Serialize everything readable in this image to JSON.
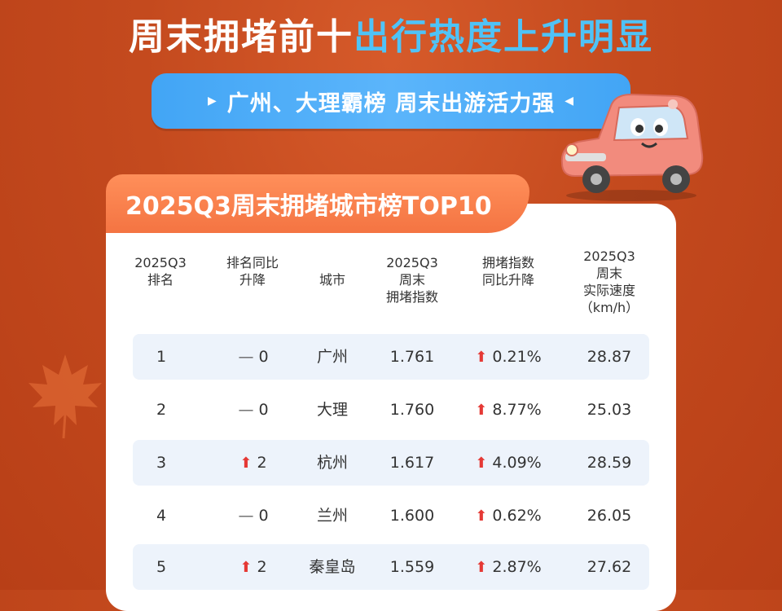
{
  "header": {
    "title_part1": "周末拥堵前十",
    "title_part2": "出行热度上升明显",
    "subtitle": "广州、大理霸榜 周末出游活力强"
  },
  "chart_data": {
    "type": "table",
    "title": "2025Q3周末拥堵城市榜TOP10",
    "columns": [
      [
        "2025Q3",
        "排名"
      ],
      [
        "排名同比",
        "升降"
      ],
      [
        "城市"
      ],
      [
        "2025Q3",
        "周末",
        "拥堵指数"
      ],
      [
        "拥堵指数",
        "同比升降"
      ],
      [
        "2025Q3",
        "周末",
        "实际速度",
        "（km/h）"
      ]
    ],
    "rows": [
      {
        "rank": "1",
        "rank_change": "0",
        "rank_dir": "flat",
        "city": "广州",
        "index": "1.761",
        "index_change": "0.21%",
        "speed": "28.87"
      },
      {
        "rank": "2",
        "rank_change": "0",
        "rank_dir": "flat",
        "city": "大理",
        "index": "1.760",
        "index_change": "8.77%",
        "speed": "25.03"
      },
      {
        "rank": "3",
        "rank_change": "2",
        "rank_dir": "up",
        "city": "杭州",
        "index": "1.617",
        "index_change": "4.09%",
        "speed": "28.59"
      },
      {
        "rank": "4",
        "rank_change": "0",
        "rank_dir": "flat",
        "city": "兰州",
        "index": "1.600",
        "index_change": "0.62%",
        "speed": "26.05"
      },
      {
        "rank": "5",
        "rank_change": "2",
        "rank_dir": "up",
        "city": "秦皇岛",
        "index": "1.559",
        "index_change": "2.87%",
        "speed": "27.62"
      }
    ]
  },
  "icons": {
    "up_arrow": "red-up-arrow-icon",
    "flat": "dash-icon",
    "decor": [
      "maple-leaf-icon",
      "cartoon-car-icon"
    ]
  },
  "colors": {
    "background": "#c44a1e",
    "title_accent": "#4fc3f7",
    "pill": "#42a5f5",
    "tab": "#f47442",
    "up_arrow": "#e53935"
  }
}
